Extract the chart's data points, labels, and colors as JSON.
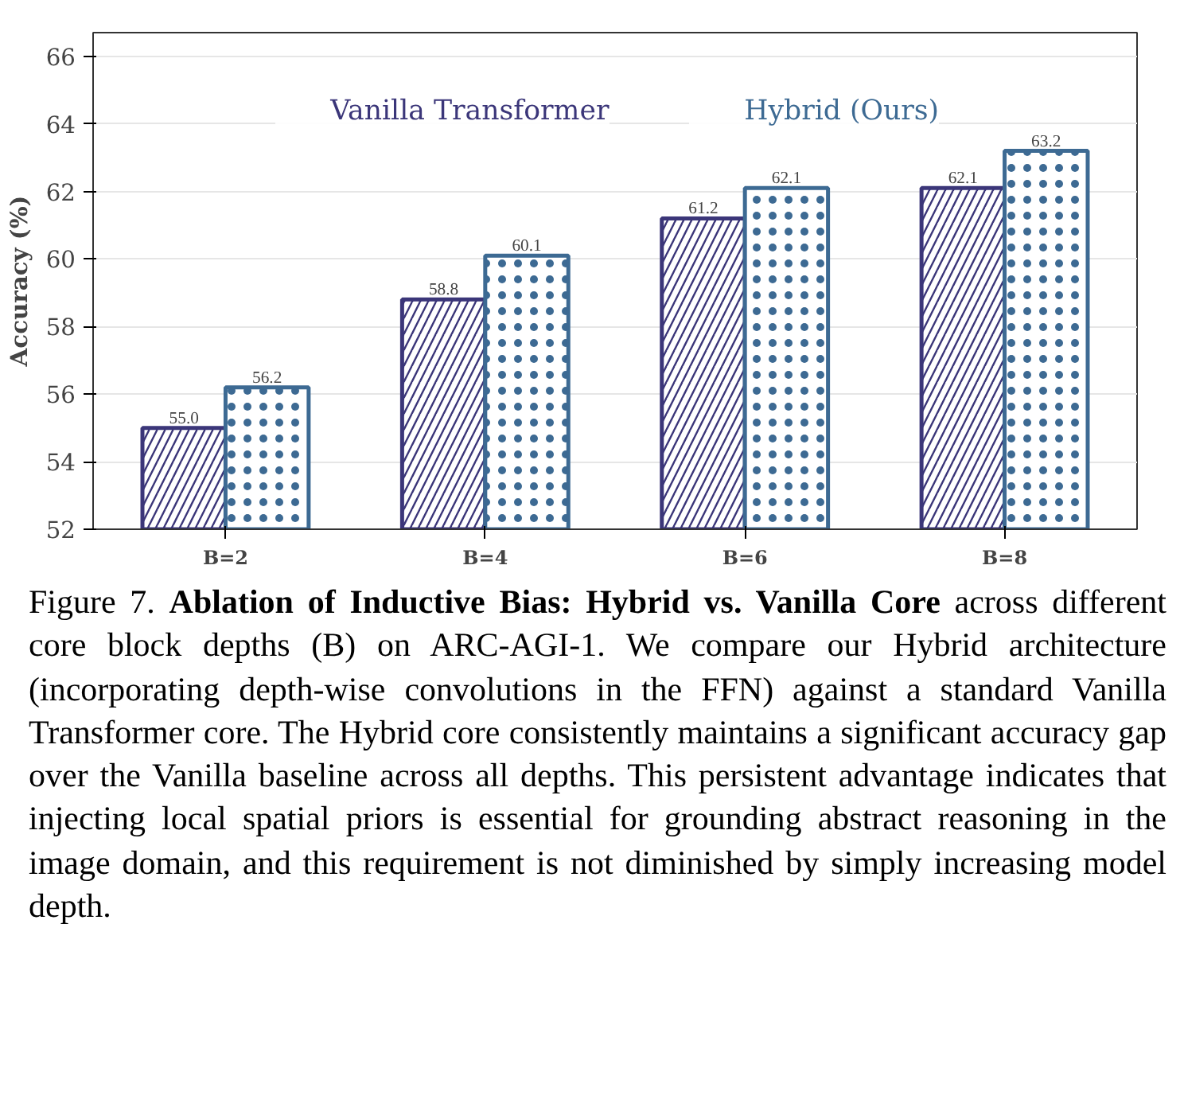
{
  "chart_data": {
    "type": "bar",
    "ylabel": "Accuracy (%)",
    "categories": [
      "B=2",
      "B=4",
      "B=6",
      "B=8"
    ],
    "series": [
      {
        "name": "Vanilla Transformer",
        "color": "#3b3679",
        "values": [
          55.0,
          58.8,
          61.2,
          62.1
        ],
        "value_labels": [
          "55.0",
          "58.8",
          "61.2",
          "62.1"
        ]
      },
      {
        "name": "Hybrid (Ours)",
        "color": "#3d6a93",
        "values": [
          56.2,
          60.1,
          62.1,
          63.2
        ],
        "value_labels": [
          "56.2",
          "60.1",
          "62.1",
          "63.2"
        ]
      }
    ],
    "ylim": [
      52,
      66.7
    ],
    "yticks": [
      52,
      54,
      56,
      58,
      60,
      62,
      64,
      66
    ],
    "grid": "y",
    "legend": "top",
    "annotations": [
      "Figure 7.",
      "Ablation of Inductive Bias: Hybrid vs. Vanilla Core",
      "across different core block depths (B) on ARC-AGI-1. We compare our Hybrid architecture (incorporating depth-wise convolutions in the FFN) against a standard Vanilla Transformer core. The Hybrid core consistently maintains a significant accuracy gap over the Vanilla baseline across all depths. This persistent advantage indicates that injecting local spatial priors is essential for grounding abstract reasoning in the image domain, and this requirement is not diminished by simply increasing model depth."
    ]
  }
}
